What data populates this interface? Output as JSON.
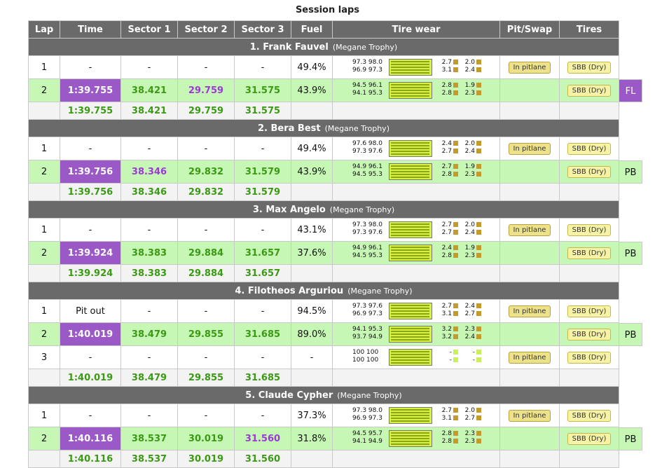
{
  "page_title": "Session laps",
  "headers": [
    "Lap",
    "Time",
    "Sector 1",
    "Sector 2",
    "Sector 3",
    "Fuel",
    "Tire wear",
    "Pit/Swap",
    "Tires"
  ],
  "drivers": [
    {
      "name": "1. Frank Fauvel",
      "car": "(Megane Trophy)",
      "laps": [
        {
          "lap": "1",
          "time": "-",
          "s1": "-",
          "s2": "-",
          "s3": "-",
          "fuel": "49.4%",
          "wear": [
            "97.3  98.0",
            "96.9  97.3"
          ],
          "temps": [
            [
              "2.7",
              "2.0"
            ],
            [
              "3.1",
              "2.4"
            ]
          ],
          "sq": "brown",
          "pit": "In pitlane",
          "tires": "SBB (Dry)",
          "tag": "",
          "green": false,
          "best": false,
          "colors": [
            "",
            "",
            "",
            ""
          ]
        },
        {
          "lap": "2",
          "time": "1:39.755",
          "s1": "38.421",
          "s2": "29.759",
          "s3": "31.575",
          "fuel": "43.9%",
          "wear": [
            "94.5  96.1",
            "94.1  95.3"
          ],
          "temps": [
            [
              "2.8",
              "1.9"
            ],
            [
              "2.8",
              "2.3"
            ]
          ],
          "sq": "brown",
          "pit": "",
          "tires": "SBB (Dry)",
          "tag": "FL",
          "tag_purple": true,
          "green": true,
          "best": true,
          "colors": [
            "",
            "green",
            "purple",
            "green"
          ]
        }
      ],
      "summary": {
        "time": "1:39.755",
        "s1": "38.421",
        "s2": "29.759",
        "s3": "31.575"
      }
    },
    {
      "name": "2. Bera Best",
      "car": "(Megane Trophy)",
      "laps": [
        {
          "lap": "1",
          "time": "-",
          "s1": "-",
          "s2": "-",
          "s3": "-",
          "fuel": "49.4%",
          "wear": [
            "97.6  98.0",
            "97.3  97.6"
          ],
          "temps": [
            [
              "2.4",
              "2.0"
            ],
            [
              "2.7",
              "2.4"
            ]
          ],
          "sq": "brown",
          "pit": "In pitlane",
          "tires": "SBB (Dry)",
          "tag": "",
          "green": false,
          "best": false,
          "colors": [
            "",
            "",
            "",
            ""
          ]
        },
        {
          "lap": "2",
          "time": "1:39.756",
          "s1": "38.346",
          "s2": "29.832",
          "s3": "31.579",
          "fuel": "43.9%",
          "wear": [
            "94.9  96.1",
            "94.5  95.3"
          ],
          "temps": [
            [
              "2.7",
              "1.9"
            ],
            [
              "2.8",
              "2.3"
            ]
          ],
          "sq": "brown",
          "pit": "",
          "tires": "SBB (Dry)",
          "tag": "PB",
          "tag_purple": false,
          "green": true,
          "best": true,
          "colors": [
            "",
            "purple",
            "green",
            "green"
          ]
        }
      ],
      "summary": {
        "time": "1:39.756",
        "s1": "38.346",
        "s2": "29.832",
        "s3": "31.579"
      }
    },
    {
      "name": "3. Max Angelo",
      "car": "(Megane Trophy)",
      "laps": [
        {
          "lap": "1",
          "time": "-",
          "s1": "-",
          "s2": "-",
          "s3": "-",
          "fuel": "43.1%",
          "wear": [
            "97.3  98.0",
            "97.3  97.6"
          ],
          "temps": [
            [
              "2.7",
              "2.0"
            ],
            [
              "2.7",
              "2.4"
            ]
          ],
          "sq": "brown",
          "pit": "In pitlane",
          "tires": "SBB (Dry)",
          "tag": "",
          "green": false,
          "best": false,
          "colors": [
            "",
            "",
            "",
            ""
          ]
        },
        {
          "lap": "2",
          "time": "1:39.924",
          "s1": "38.383",
          "s2": "29.884",
          "s3": "31.657",
          "fuel": "37.6%",
          "wear": [
            "94.9  96.1",
            "94.5  95.3"
          ],
          "temps": [
            [
              "2.4",
              "1.9"
            ],
            [
              "2.8",
              "2.3"
            ]
          ],
          "sq": "brown",
          "pit": "",
          "tires": "SBB (Dry)",
          "tag": "PB",
          "tag_purple": false,
          "green": true,
          "best": true,
          "colors": [
            "",
            "green",
            "green",
            "green"
          ]
        }
      ],
      "summary": {
        "time": "1:39.924",
        "s1": "38.383",
        "s2": "29.884",
        "s3": "31.657"
      }
    },
    {
      "name": "4. Filotheos Arguriou",
      "car": "(Megane Trophy)",
      "laps": [
        {
          "lap": "1",
          "time": "Pit out",
          "s1": "-",
          "s2": "-",
          "s3": "-",
          "fuel": "94.5%",
          "wear": [
            "97.3  97.6",
            "96.9  97.3"
          ],
          "temps": [
            [
              "2.7",
              "2.4"
            ],
            [
              "3.1",
              "2.7"
            ]
          ],
          "sq": "brown",
          "pit": "In pitlane",
          "tires": "SBB (Dry)",
          "tag": "",
          "green": false,
          "best": false,
          "colors": [
            "",
            "",
            "",
            ""
          ]
        },
        {
          "lap": "2",
          "time": "1:40.019",
          "s1": "38.479",
          "s2": "29.855",
          "s3": "31.685",
          "fuel": "89.0%",
          "wear": [
            "94.1  95.3",
            "93.7  94.9"
          ],
          "temps": [
            [
              "3.2",
              "2.3"
            ],
            [
              "3.2",
              "2.4"
            ]
          ],
          "sq": "brown",
          "pit": "",
          "tires": "SBB (Dry)",
          "tag": "PB",
          "tag_purple": false,
          "green": true,
          "best": true,
          "colors": [
            "",
            "green",
            "green",
            "green"
          ]
        },
        {
          "lap": "3",
          "time": "-",
          "s1": "-",
          "s2": "-",
          "s3": "-",
          "fuel": "-",
          "wear": [
            "100   100",
            "100   100"
          ],
          "temps": [
            [
              "-",
              "-"
            ],
            [
              "-",
              "-"
            ]
          ],
          "sq": "lime",
          "pit": "In pitlane",
          "tires": "SBB (Dry)",
          "tag": "",
          "green": false,
          "best": false,
          "colors": [
            "",
            "",
            "",
            ""
          ]
        }
      ],
      "summary": {
        "time": "1:40.019",
        "s1": "38.479",
        "s2": "29.855",
        "s3": "31.685"
      }
    },
    {
      "name": "5. Claude Cypher",
      "car": "(Megane Trophy)",
      "laps": [
        {
          "lap": "1",
          "time": "-",
          "s1": "-",
          "s2": "-",
          "s3": "-",
          "fuel": "37.3%",
          "wear": [
            "97.3  98.0",
            "96.9  97.3"
          ],
          "temps": [
            [
              "2.7",
              "2.0"
            ],
            [
              "3.1",
              "2.7"
            ]
          ],
          "sq": "brown",
          "pit": "In pitlane",
          "tires": "SBB (Dry)",
          "tag": "",
          "green": false,
          "best": false,
          "colors": [
            "",
            "",
            "",
            ""
          ]
        },
        {
          "lap": "2",
          "time": "1:40.116",
          "s1": "38.537",
          "s2": "30.019",
          "s3": "31.560",
          "fuel": "31.8%",
          "wear": [
            "94.5  95.7",
            "94.1  94.9"
          ],
          "temps": [
            [
              "2.8",
              "2.3"
            ],
            [
              "2.8",
              "2.3"
            ]
          ],
          "sq": "brown",
          "pit": "",
          "tires": "SBB (Dry)",
          "tag": "PB",
          "tag_purple": false,
          "green": true,
          "best": true,
          "colors": [
            "",
            "green",
            "green",
            "purple"
          ]
        }
      ],
      "summary": {
        "time": "1:40.116",
        "s1": "38.537",
        "s2": "30.019",
        "s3": "31.560"
      }
    }
  ]
}
